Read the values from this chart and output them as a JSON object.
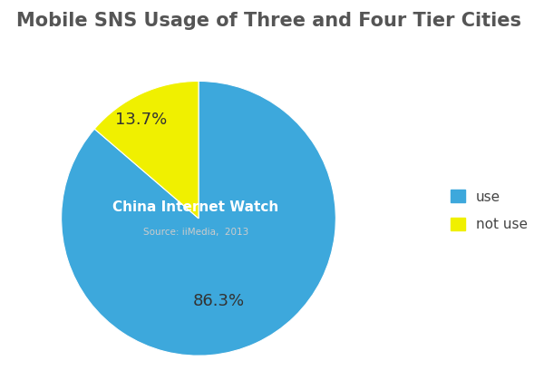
{
  "title": "Mobile SNS Usage of Three and Four Tier Cities",
  "slices": [
    86.3,
    13.7
  ],
  "labels": [
    "use",
    "not use"
  ],
  "colors": [
    "#3DA8DC",
    "#F0F000"
  ],
  "pct_labels": [
    "86.3%",
    "13.7%"
  ],
  "center_text_line1": "China Internet Watch",
  "center_text_line2": "Source: iiMedia,  2013",
  "legend_labels": [
    "use",
    "not use"
  ],
  "legend_colors": [
    "#3DA8DC",
    "#F0F000"
  ],
  "title_fontsize": 15,
  "title_color": "#555555",
  "background_color": "#ffffff"
}
